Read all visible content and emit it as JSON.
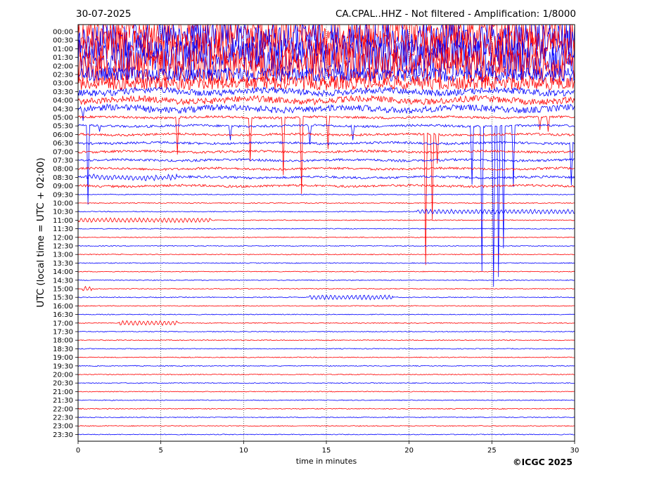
{
  "header": {
    "date": "30-07-2025",
    "title": "CA.CPAL..HHZ - Not filtered - Amplification: 1/8000"
  },
  "footer": {
    "copyright": "©ICGC 2025"
  },
  "chart_data": {
    "type": "line",
    "title": "CA.CPAL..HHZ - Not filtered - Amplification: 1/8000",
    "xlabel": "time in minutes",
    "ylabel": "UTC (local time = UTC + 02:00)",
    "xlim": [
      0,
      30
    ],
    "x_ticks": [
      "0",
      "5",
      "10",
      "15",
      "20",
      "25",
      "30"
    ],
    "y_ticks": [
      "00:00",
      "00:30",
      "01:00",
      "01:30",
      "02:00",
      "02:30",
      "03:00",
      "03:30",
      "04:00",
      "04:30",
      "05:00",
      "05:30",
      "06:00",
      "06:30",
      "07:00",
      "07:30",
      "08:00",
      "08:30",
      "09:00",
      "09:30",
      "10:00",
      "10:30",
      "11:00",
      "11:30",
      "12:00",
      "12:30",
      "13:00",
      "13:30",
      "14:00",
      "14:30",
      "15:00",
      "15:30",
      "16:00",
      "16:30",
      "17:00",
      "17:30",
      "18:00",
      "18:30",
      "19:00",
      "19:30",
      "20:00",
      "20:30",
      "21:00",
      "21:30",
      "22:00",
      "22:30",
      "23:00",
      "23:30"
    ],
    "trace_colors": [
      "#ff0000",
      "#0000ff"
    ],
    "grid": "vertical dotted lines every 5 minutes",
    "series": [
      {
        "label": "00:00",
        "color": "#ff0000",
        "activity": "saturated"
      },
      {
        "label": "00:30",
        "color": "#0000ff",
        "activity": "saturated"
      },
      {
        "label": "01:00",
        "color": "#ff0000",
        "activity": "saturated"
      },
      {
        "label": "01:30",
        "color": "#0000ff",
        "activity": "saturated"
      },
      {
        "label": "02:00",
        "color": "#ff0000",
        "activity": "saturated"
      },
      {
        "label": "02:30",
        "color": "#0000ff",
        "activity": "high"
      },
      {
        "label": "03:00",
        "color": "#ff0000",
        "activity": "high"
      },
      {
        "label": "03:30",
        "color": "#0000ff",
        "activity": "medium"
      },
      {
        "label": "04:00",
        "color": "#ff0000",
        "activity": "medium"
      },
      {
        "label": "04:30",
        "color": "#0000ff",
        "activity": "medium"
      },
      {
        "label": "05:00",
        "color": "#ff0000",
        "activity": "low"
      },
      {
        "label": "05:30",
        "color": "#0000ff",
        "activity": "low"
      },
      {
        "label": "06:00",
        "color": "#ff0000",
        "activity": "low"
      },
      {
        "label": "06:30",
        "color": "#0000ff",
        "activity": "low"
      },
      {
        "label": "07:00",
        "color": "#ff0000",
        "activity": "low"
      },
      {
        "label": "07:30",
        "color": "#0000ff",
        "activity": "low"
      },
      {
        "label": "08:00",
        "color": "#ff0000",
        "activity": "low"
      },
      {
        "label": "08:30",
        "color": "#0000ff",
        "activity": "low"
      },
      {
        "label": "09:00",
        "color": "#ff0000",
        "activity": "low"
      },
      {
        "label": "09:30",
        "color": "#0000ff",
        "activity": "quiet"
      },
      {
        "label": "10:00",
        "color": "#ff0000",
        "activity": "quiet"
      },
      {
        "label": "10:30",
        "color": "#0000ff",
        "activity": "quiet"
      },
      {
        "label": "11:00",
        "color": "#ff0000",
        "activity": "quiet"
      },
      {
        "label": "11:30",
        "color": "#0000ff",
        "activity": "quiet"
      },
      {
        "label": "12:00",
        "color": "#ff0000",
        "activity": "quiet"
      },
      {
        "label": "12:30",
        "color": "#0000ff",
        "activity": "quiet"
      },
      {
        "label": "13:00",
        "color": "#ff0000",
        "activity": "quiet"
      },
      {
        "label": "13:30",
        "color": "#0000ff",
        "activity": "quiet"
      },
      {
        "label": "14:00",
        "color": "#ff0000",
        "activity": "quiet"
      },
      {
        "label": "14:30",
        "color": "#0000ff",
        "activity": "quiet"
      },
      {
        "label": "15:00",
        "color": "#ff0000",
        "activity": "quiet"
      },
      {
        "label": "15:30",
        "color": "#0000ff",
        "activity": "quiet"
      },
      {
        "label": "16:00",
        "color": "#ff0000",
        "activity": "quiet"
      },
      {
        "label": "16:30",
        "color": "#0000ff",
        "activity": "quiet"
      },
      {
        "label": "17:00",
        "color": "#ff0000",
        "activity": "quiet"
      },
      {
        "label": "17:30",
        "color": "#0000ff",
        "activity": "quiet"
      },
      {
        "label": "18:00",
        "color": "#ff0000",
        "activity": "quiet"
      },
      {
        "label": "18:30",
        "color": "#0000ff",
        "activity": "quiet"
      },
      {
        "label": "19:00",
        "color": "#ff0000",
        "activity": "quiet"
      },
      {
        "label": "19:30",
        "color": "#0000ff",
        "activity": "quiet"
      },
      {
        "label": "20:00",
        "color": "#ff0000",
        "activity": "quiet"
      },
      {
        "label": "20:30",
        "color": "#0000ff",
        "activity": "quiet"
      },
      {
        "label": "21:00",
        "color": "#ff0000",
        "activity": "quiet"
      },
      {
        "label": "21:30",
        "color": "#0000ff",
        "activity": "quiet"
      },
      {
        "label": "22:00",
        "color": "#ff0000",
        "activity": "quiet"
      },
      {
        "label": "22:30",
        "color": "#0000ff",
        "activity": "quiet"
      },
      {
        "label": "23:00",
        "color": "#ff0000",
        "activity": "quiet"
      },
      {
        "label": "23:30",
        "color": "#0000ff",
        "activity": "quiet"
      }
    ],
    "spikes": [
      {
        "row": "04:30",
        "minute": 0.3,
        "amplitude_rows": 1.5
      },
      {
        "row": "05:30",
        "minute": 1.3,
        "amplitude_rows": 0.6
      },
      {
        "row": "05:00",
        "minute": 6.0,
        "amplitude_rows": 4.3
      },
      {
        "row": "05:30",
        "minute": 9.2,
        "amplitude_rows": 1.6
      },
      {
        "row": "05:00",
        "minute": 10.4,
        "amplitude_rows": 5.2
      },
      {
        "row": "05:00",
        "minute": 12.4,
        "amplitude_rows": 6.8
      },
      {
        "row": "05:00",
        "minute": 13.5,
        "amplitude_rows": 9.0
      },
      {
        "row": "05:30",
        "minute": 14.0,
        "amplitude_rows": 2.3
      },
      {
        "row": "05:00",
        "minute": 15.1,
        "amplitude_rows": 3.7
      },
      {
        "row": "05:30",
        "minute": 16.6,
        "amplitude_rows": 1.5
      },
      {
        "row": "05:30",
        "minute": 0.6,
        "amplitude_rows": 9.3
      },
      {
        "row": "06:00",
        "minute": 21.0,
        "amplitude_rows": 15.3
      },
      {
        "row": "06:00",
        "minute": 21.4,
        "amplitude_rows": 10.0
      },
      {
        "row": "06:00",
        "minute": 21.7,
        "amplitude_rows": 3.4
      },
      {
        "row": "05:30",
        "minute": 23.8,
        "amplitude_rows": 6.8
      },
      {
        "row": "05:30",
        "minute": 24.4,
        "amplitude_rows": 16.8
      },
      {
        "row": "05:30",
        "minute": 25.1,
        "amplitude_rows": 18.6
      },
      {
        "row": "05:30",
        "minute": 25.4,
        "amplitude_rows": 17.5
      },
      {
        "row": "05:30",
        "minute": 25.7,
        "amplitude_rows": 14.3
      },
      {
        "row": "05:30",
        "minute": 26.3,
        "amplitude_rows": 7.2
      },
      {
        "row": "05:00",
        "minute": 27.9,
        "amplitude_rows": 1.6
      },
      {
        "row": "05:00",
        "minute": 28.4,
        "amplitude_rows": 1.7
      },
      {
        "row": "06:30",
        "minute": 29.8,
        "amplitude_rows": 5.0
      }
    ],
    "wavelets": [
      {
        "row": "08:30",
        "from": 0.5,
        "to": 6.0
      },
      {
        "row": "10:30",
        "from": 20.5,
        "to": 30.0
      },
      {
        "row": "11:00",
        "from": 0.0,
        "to": 8.0
      },
      {
        "row": "15:00",
        "from": 0.3,
        "to": 0.8
      },
      {
        "row": "15:30",
        "from": 14.0,
        "to": 19.0
      },
      {
        "row": "17:00",
        "from": 2.5,
        "to": 6.0
      }
    ]
  }
}
